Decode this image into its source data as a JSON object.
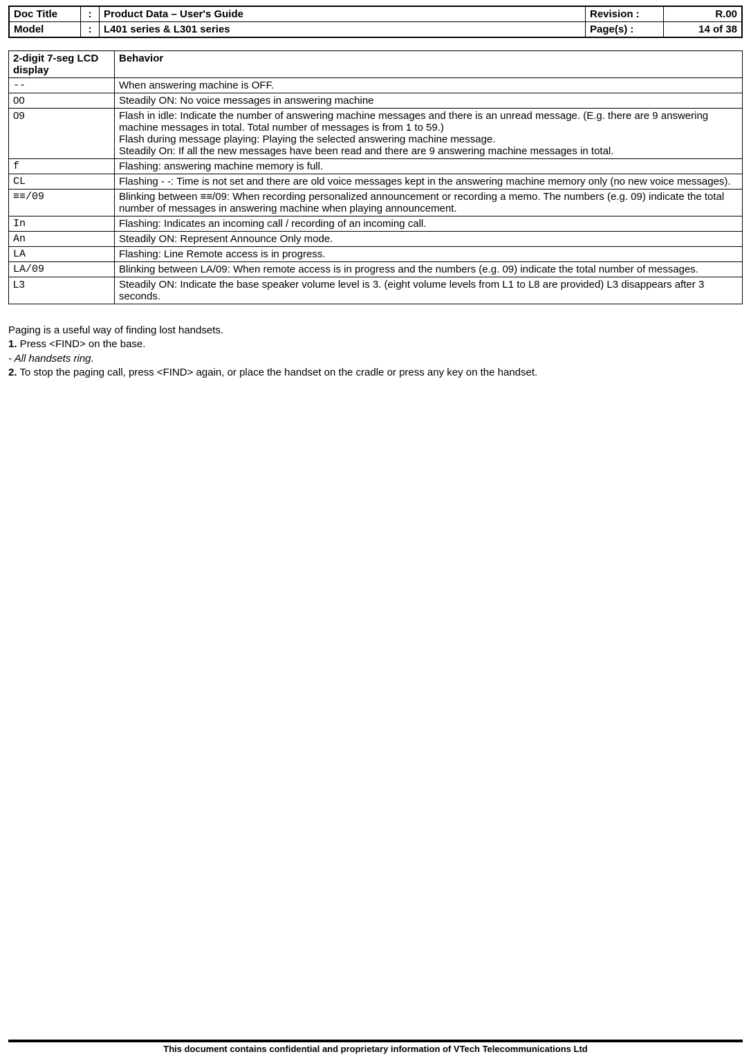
{
  "header": {
    "rows": [
      {
        "label": "Doc Title",
        "value": "Product Data – User's Guide",
        "rlabel": "Revision  :",
        "rvalue": "R.00"
      },
      {
        "label": "Model",
        "value": "L401 series & L301 series",
        "rlabel": "Page(s)   :",
        "rvalue": "14 of 38"
      }
    ]
  },
  "table": {
    "col1": "2-digit 7-seg LCD display",
    "col2": "Behavior",
    "rows": [
      {
        "disp": "--",
        "mono": true,
        "behavior": "When answering machine is OFF."
      },
      {
        "disp": "00",
        "mono": false,
        "behavior": "Steadily ON: No voice messages in answering machine"
      },
      {
        "disp": "09",
        "mono": false,
        "behavior": "Flash in idle: Indicate the number of answering machine messages and there is an unread message. (E.g. there are 9 answering machine messages in total. Total number of messages is from 1 to 59.)\nFlash during message playing: Playing the selected answering machine message.\nSteadily On: If all the new messages have been read and there are 9 answering machine messages in total."
      },
      {
        "disp": "f",
        "mono": true,
        "behavior": "Flashing: answering machine memory is full."
      },
      {
        "disp": "CL",
        "mono": true,
        "behavior": "Flashing - -: Time is not set and there are old voice messages kept in the answering machine memory only (no new voice messages)."
      },
      {
        "disp": "≡≡/09",
        "mono": true,
        "behavior": "Blinking between ≡≡/09: When recording personalized announcement or recording a memo. The numbers (e.g. 09) indicate the total number of messages in answering machine when playing announcement."
      },
      {
        "disp": "In",
        "mono": true,
        "behavior": "Flashing: Indicates an incoming call / recording of an incoming call."
      },
      {
        "disp": "An",
        "mono": true,
        "behavior": "Steadily ON:  Represent Announce Only mode."
      },
      {
        "disp": "LA",
        "mono": true,
        "behavior": "Flashing: Line Remote access is in progress."
      },
      {
        "disp": "LA/09",
        "mono": true,
        "behavior": "Blinking between LA/09: When remote access is in progress and the numbers (e.g. 09) indicate the total number of messages."
      },
      {
        "disp": "L3",
        "mono": false,
        "behavior": "Steadily ON: Indicate the base speaker volume level is 3. (eight volume levels from L1 to L8 are provided) L3 disappears after 3 seconds."
      }
    ]
  },
  "body": {
    "line1": "Paging is a useful way of finding lost handsets.",
    "step1_num": "1.",
    "step1_text": " Press <FIND> on the base.",
    "italic_line": "- All handsets ring.",
    "step2_num": "2.",
    "step2_text": " To stop the paging call, press <FIND> again, or place the handset on the cradle or press any key on the handset."
  },
  "footer": "This document contains confidential and proprietary information of VTech Telecommunications Ltd"
}
